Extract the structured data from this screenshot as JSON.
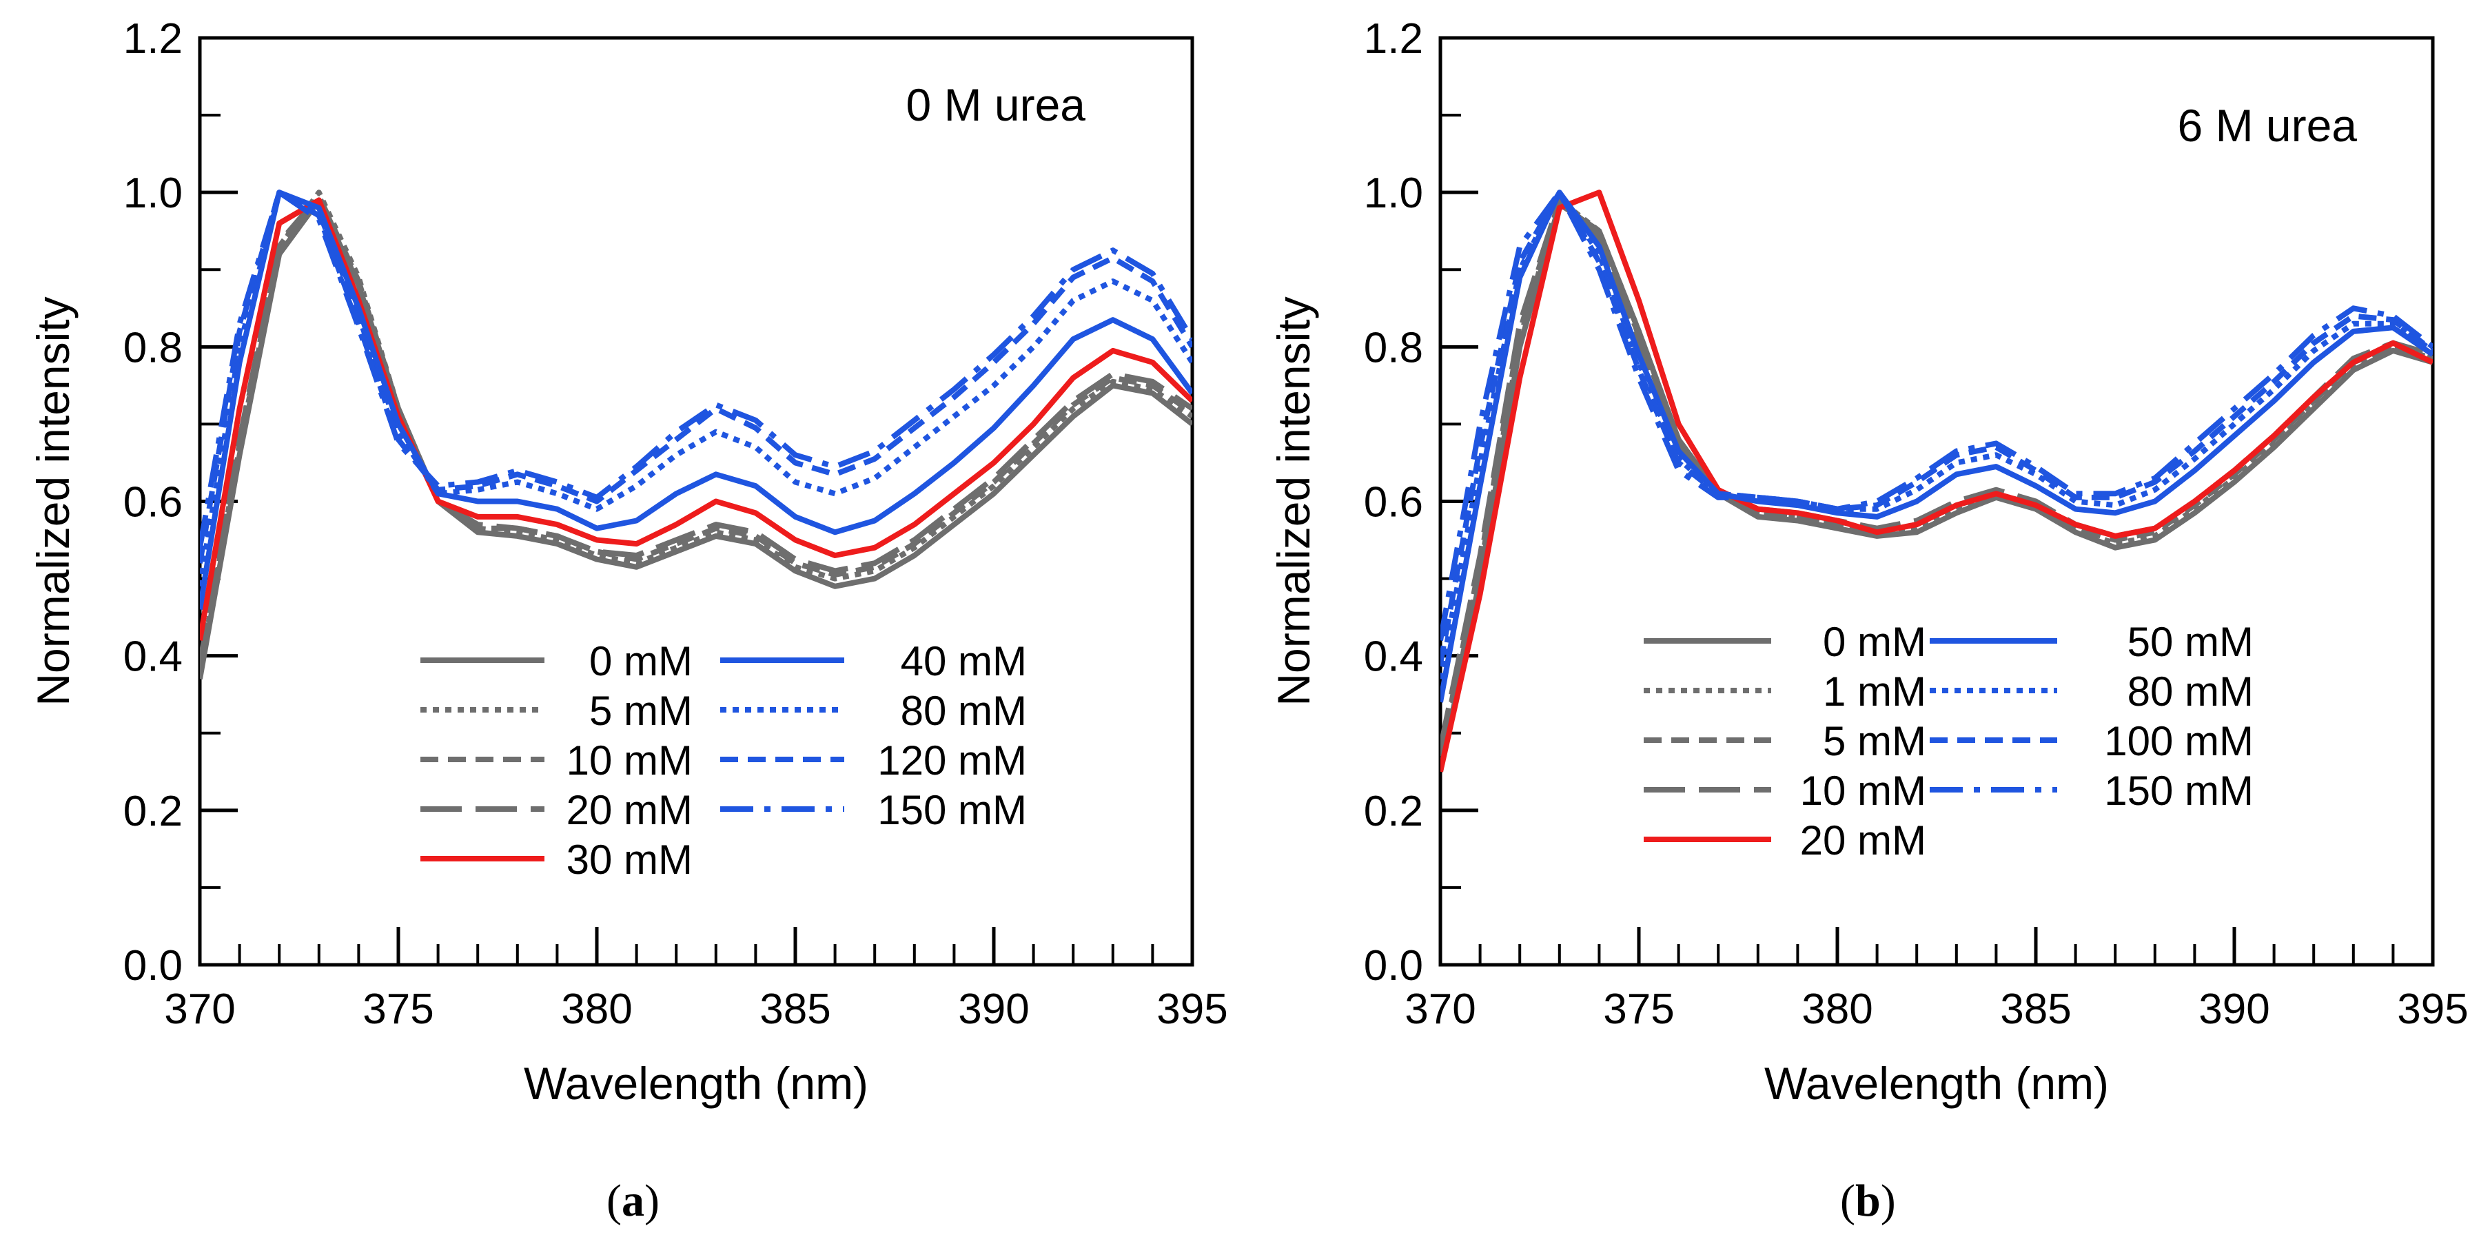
{
  "chart_data": [
    {
      "type": "line",
      "panel": "a",
      "annotation": "0 M urea",
      "xlabel": "Wavelength (nm)",
      "ylabel": "Normalized intensity",
      "xlim": [
        370,
        395
      ],
      "ylim": [
        0.0,
        1.2
      ],
      "xticks": [
        370,
        375,
        380,
        385,
        390,
        395
      ],
      "xtick_labels": [
        "370",
        "375",
        "380",
        "385",
        "390",
        "395"
      ],
      "yticks": [
        0.0,
        0.2,
        0.4,
        0.6,
        0.8,
        1.0,
        1.2
      ],
      "ytick_labels": [
        "0.0",
        "0.2",
        "0.4",
        "0.6",
        "0.8",
        "1.0",
        "1.2"
      ],
      "grid": false,
      "legend": "bottom-center",
      "x": [
        370,
        371,
        372,
        373,
        374,
        375,
        376,
        377,
        378,
        379,
        380,
        381,
        382,
        383,
        384,
        385,
        386,
        387,
        388,
        389,
        390,
        391,
        392,
        393,
        394,
        395
      ],
      "series": [
        {
          "name": "0 mM",
          "color": "#6e6e6e",
          "dash": "solid",
          "values": [
            0.37,
            0.66,
            0.92,
            0.99,
            0.88,
            0.72,
            0.6,
            0.56,
            0.555,
            0.545,
            0.525,
            0.515,
            0.535,
            0.555,
            0.545,
            0.51,
            0.49,
            0.5,
            0.53,
            0.57,
            0.61,
            0.66,
            0.71,
            0.75,
            0.74,
            0.7
          ]
        },
        {
          "name": "5 mM",
          "color": "#6e6e6e",
          "dash": "dotted",
          "values": [
            0.38,
            0.67,
            0.93,
            1.0,
            0.89,
            0.72,
            0.6,
            0.565,
            0.56,
            0.55,
            0.53,
            0.52,
            0.54,
            0.56,
            0.55,
            0.515,
            0.5,
            0.51,
            0.54,
            0.58,
            0.62,
            0.67,
            0.72,
            0.755,
            0.745,
            0.71
          ]
        },
        {
          "name": "10 mM",
          "color": "#6e6e6e",
          "dash": "dashed",
          "values": [
            0.385,
            0.675,
            0.93,
            0.995,
            0.885,
            0.72,
            0.6,
            0.565,
            0.565,
            0.555,
            0.535,
            0.525,
            0.545,
            0.565,
            0.555,
            0.52,
            0.505,
            0.515,
            0.545,
            0.585,
            0.625,
            0.675,
            0.725,
            0.76,
            0.75,
            0.715
          ]
        },
        {
          "name": "20 mM",
          "color": "#6e6e6e",
          "dash": "longdash",
          "values": [
            0.39,
            0.68,
            0.935,
            0.995,
            0.88,
            0.72,
            0.6,
            0.57,
            0.565,
            0.555,
            0.535,
            0.53,
            0.55,
            0.57,
            0.56,
            0.525,
            0.51,
            0.52,
            0.55,
            0.59,
            0.63,
            0.68,
            0.73,
            0.765,
            0.755,
            0.72
          ]
        },
        {
          "name": "30 mM",
          "color": "#ee1c1c",
          "dash": "solid",
          "values": [
            0.42,
            0.72,
            0.96,
            0.99,
            0.86,
            0.71,
            0.6,
            0.58,
            0.58,
            0.57,
            0.55,
            0.545,
            0.57,
            0.6,
            0.585,
            0.55,
            0.53,
            0.54,
            0.57,
            0.61,
            0.65,
            0.7,
            0.76,
            0.795,
            0.78,
            0.73
          ]
        },
        {
          "name": "40 mM",
          "color": "#1f55e0",
          "dash": "solid",
          "values": [
            0.46,
            0.78,
            1.0,
            0.98,
            0.85,
            0.7,
            0.61,
            0.6,
            0.6,
            0.59,
            0.565,
            0.575,
            0.61,
            0.635,
            0.62,
            0.58,
            0.56,
            0.575,
            0.61,
            0.65,
            0.695,
            0.75,
            0.81,
            0.835,
            0.81,
            0.74
          ]
        },
        {
          "name": "80 mM",
          "color": "#1f55e0",
          "dash": "dotted",
          "values": [
            0.49,
            0.8,
            1.0,
            0.975,
            0.84,
            0.69,
            0.61,
            0.615,
            0.625,
            0.61,
            0.59,
            0.62,
            0.66,
            0.69,
            0.67,
            0.625,
            0.61,
            0.63,
            0.67,
            0.71,
            0.75,
            0.8,
            0.86,
            0.885,
            0.86,
            0.78
          ]
        },
        {
          "name": "120 mM",
          "color": "#1f55e0",
          "dash": "dashed",
          "values": [
            0.52,
            0.82,
            1.0,
            0.97,
            0.83,
            0.68,
            0.615,
            0.62,
            0.635,
            0.62,
            0.6,
            0.64,
            0.68,
            0.72,
            0.695,
            0.65,
            0.635,
            0.655,
            0.695,
            0.735,
            0.78,
            0.83,
            0.89,
            0.915,
            0.885,
            0.8
          ]
        },
        {
          "name": "150 mM",
          "color": "#1f55e0",
          "dash": "dashdot",
          "values": [
            0.54,
            0.83,
            1.0,
            0.965,
            0.825,
            0.675,
            0.62,
            0.625,
            0.64,
            0.625,
            0.605,
            0.645,
            0.69,
            0.725,
            0.705,
            0.66,
            0.645,
            0.665,
            0.705,
            0.745,
            0.79,
            0.84,
            0.9,
            0.925,
            0.895,
            0.81
          ]
        }
      ],
      "legend_items": [
        "0 mM",
        "5 mM",
        "10 mM",
        "20 mM",
        "30 mM",
        "40 mM",
        "80 mM",
        "120 mM",
        "150 mM"
      ]
    },
    {
      "type": "line",
      "panel": "b",
      "annotation": "6 M urea",
      "xlabel": "Wavelength (nm)",
      "ylabel": "Normalized intensity",
      "xlim": [
        370,
        395
      ],
      "ylim": [
        0.0,
        1.2
      ],
      "xticks": [
        370,
        375,
        380,
        385,
        390,
        395
      ],
      "xtick_labels": [
        "370",
        "375",
        "380",
        "385",
        "390",
        "395"
      ],
      "yticks": [
        0.0,
        0.2,
        0.4,
        0.6,
        0.8,
        1.0,
        1.2
      ],
      "ytick_labels": [
        "0.0",
        "0.2",
        "0.4",
        "0.6",
        "0.8",
        "1.0",
        "1.2"
      ],
      "grid": false,
      "legend": "bottom-left",
      "x": [
        370,
        371,
        372,
        373,
        374,
        375,
        376,
        377,
        378,
        379,
        380,
        381,
        382,
        383,
        384,
        385,
        386,
        387,
        388,
        389,
        390,
        391,
        392,
        393,
        394,
        395
      ],
      "series": [
        {
          "name": "0 mM",
          "color": "#6e6e6e",
          "dash": "solid",
          "values": [
            0.25,
            0.5,
            0.8,
            0.985,
            0.95,
            0.82,
            0.68,
            0.61,
            0.58,
            0.575,
            0.565,
            0.555,
            0.56,
            0.585,
            0.605,
            0.59,
            0.56,
            0.54,
            0.55,
            0.585,
            0.625,
            0.67,
            0.72,
            0.77,
            0.795,
            0.78
          ]
        },
        {
          "name": "1 mM",
          "color": "#6e6e6e",
          "dash": "dotted",
          "values": [
            0.26,
            0.51,
            0.81,
            0.99,
            0.95,
            0.82,
            0.68,
            0.61,
            0.585,
            0.58,
            0.57,
            0.56,
            0.565,
            0.59,
            0.61,
            0.595,
            0.565,
            0.545,
            0.555,
            0.59,
            0.63,
            0.675,
            0.725,
            0.775,
            0.8,
            0.785
          ]
        },
        {
          "name": "5 mM",
          "color": "#6e6e6e",
          "dash": "dashed",
          "values": [
            0.27,
            0.52,
            0.82,
            0.99,
            0.945,
            0.815,
            0.675,
            0.61,
            0.585,
            0.58,
            0.57,
            0.56,
            0.57,
            0.595,
            0.61,
            0.595,
            0.565,
            0.55,
            0.56,
            0.595,
            0.635,
            0.68,
            0.73,
            0.78,
            0.8,
            0.785
          ]
        },
        {
          "name": "10 mM",
          "color": "#6e6e6e",
          "dash": "longdash",
          "values": [
            0.28,
            0.53,
            0.83,
            0.99,
            0.94,
            0.81,
            0.67,
            0.61,
            0.59,
            0.585,
            0.575,
            0.565,
            0.575,
            0.6,
            0.615,
            0.6,
            0.57,
            0.555,
            0.565,
            0.6,
            0.64,
            0.685,
            0.735,
            0.785,
            0.805,
            0.79
          ]
        },
        {
          "name": "20 mM",
          "color": "#ee1c1c",
          "dash": "solid",
          "values": [
            0.25,
            0.48,
            0.76,
            0.98,
            1.0,
            0.86,
            0.7,
            0.615,
            0.59,
            0.585,
            0.575,
            0.56,
            0.57,
            0.595,
            0.61,
            0.595,
            0.57,
            0.555,
            0.565,
            0.6,
            0.64,
            0.685,
            0.735,
            0.78,
            0.805,
            0.78
          ]
        },
        {
          "name": "50 mM",
          "color": "#1f55e0",
          "dash": "solid",
          "values": [
            0.34,
            0.62,
            0.89,
            1.0,
            0.93,
            0.79,
            0.665,
            0.61,
            0.6,
            0.595,
            0.585,
            0.58,
            0.6,
            0.635,
            0.645,
            0.62,
            0.59,
            0.585,
            0.6,
            0.64,
            0.685,
            0.73,
            0.78,
            0.82,
            0.825,
            0.79
          ]
        },
        {
          "name": "80 mM",
          "color": "#1f55e0",
          "dash": "dotted",
          "values": [
            0.37,
            0.65,
            0.9,
            1.0,
            0.92,
            0.78,
            0.655,
            0.61,
            0.605,
            0.6,
            0.59,
            0.59,
            0.615,
            0.65,
            0.66,
            0.635,
            0.6,
            0.595,
            0.615,
            0.655,
            0.7,
            0.745,
            0.795,
            0.83,
            0.83,
            0.795
          ]
        },
        {
          "name": "100 mM",
          "color": "#1f55e0",
          "dash": "dashed",
          "values": [
            0.39,
            0.67,
            0.91,
            1.0,
            0.91,
            0.77,
            0.65,
            0.61,
            0.605,
            0.6,
            0.59,
            0.595,
            0.625,
            0.66,
            0.67,
            0.64,
            0.605,
            0.605,
            0.625,
            0.665,
            0.71,
            0.755,
            0.805,
            0.84,
            0.835,
            0.795
          ]
        },
        {
          "name": "150 mM",
          "color": "#1f55e0",
          "dash": "dashdot",
          "values": [
            0.42,
            0.7,
            0.93,
            1.0,
            0.9,
            0.76,
            0.64,
            0.605,
            0.605,
            0.6,
            0.59,
            0.6,
            0.63,
            0.665,
            0.675,
            0.645,
            0.61,
            0.61,
            0.63,
            0.675,
            0.72,
            0.765,
            0.815,
            0.85,
            0.84,
            0.8
          ]
        }
      ],
      "legend_items": [
        "0 mM",
        "1 mM",
        "5 mM",
        "10 mM",
        "20 mM",
        "50 mM",
        "80 mM",
        "100 mM",
        "150 mM"
      ]
    }
  ],
  "panel_labels": {
    "a": {
      "open": "(",
      "letter": "a",
      "close": ")"
    },
    "b": {
      "open": "(",
      "letter": "b",
      "close": ")"
    }
  }
}
